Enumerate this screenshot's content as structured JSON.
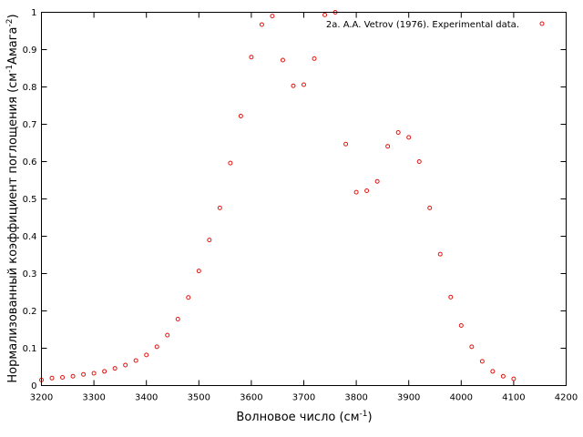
{
  "chart_data": {
    "type": "scatter",
    "title": "",
    "xlabel": "Волновое число (см",
    "xlabel_sup": "-1",
    "xlabel_suffix": ")",
    "ylabel_prefix": "Нормализованный коэффициент поглощения (см",
    "ylabel_sup1": "-1",
    "ylabel_mid": "Амага",
    "ylabel_sup2": "-2",
    "ylabel_suffix": ")",
    "xlim": [
      3200,
      4200
    ],
    "ylim": [
      0,
      1
    ],
    "xticks": [
      3200,
      3300,
      3400,
      3500,
      3600,
      3700,
      3800,
      3900,
      4000,
      4100,
      4200
    ],
    "yticks": [
      0,
      0.1,
      0.2,
      0.3,
      0.4,
      0.5,
      0.6,
      0.7,
      0.8,
      0.9,
      1
    ],
    "grid": false,
    "legend_position": "top-right",
    "marker_color": "#e3140f",
    "series": [
      {
        "name": "2a. A.A. Vetrov (1976). Experimental data.",
        "points": [
          [
            3200,
            0.015
          ],
          [
            3220,
            0.02
          ],
          [
            3240,
            0.022
          ],
          [
            3260,
            0.025
          ],
          [
            3280,
            0.03
          ],
          [
            3300,
            0.033
          ],
          [
            3320,
            0.038
          ],
          [
            3340,
            0.046
          ],
          [
            3360,
            0.055
          ],
          [
            3380,
            0.067
          ],
          [
            3400,
            0.082
          ],
          [
            3420,
            0.104
          ],
          [
            3440,
            0.135
          ],
          [
            3460,
            0.178
          ],
          [
            3480,
            0.236
          ],
          [
            3500,
            0.307
          ],
          [
            3520,
            0.39
          ],
          [
            3540,
            0.476
          ],
          [
            3560,
            0.596
          ],
          [
            3580,
            0.722
          ],
          [
            3600,
            0.88
          ],
          [
            3620,
            0.967
          ],
          [
            3640,
            0.99
          ],
          [
            3660,
            0.872
          ],
          [
            3680,
            0.803
          ],
          [
            3700,
            0.806
          ],
          [
            3720,
            0.876
          ],
          [
            3740,
            0.993
          ],
          [
            3760,
            1.0
          ],
          [
            3780,
            0.647
          ],
          [
            3800,
            0.518
          ],
          [
            3820,
            0.522
          ],
          [
            3840,
            0.547
          ],
          [
            3860,
            0.641
          ],
          [
            3880,
            0.678
          ],
          [
            3900,
            0.665
          ],
          [
            3920,
            0.6
          ],
          [
            3940,
            0.476
          ],
          [
            3960,
            0.352
          ],
          [
            3980,
            0.237
          ],
          [
            4000,
            0.161
          ],
          [
            4020,
            0.104
          ],
          [
            4040,
            0.065
          ],
          [
            4060,
            0.038
          ],
          [
            4080,
            0.025
          ],
          [
            4100,
            0.018
          ]
        ]
      }
    ]
  }
}
